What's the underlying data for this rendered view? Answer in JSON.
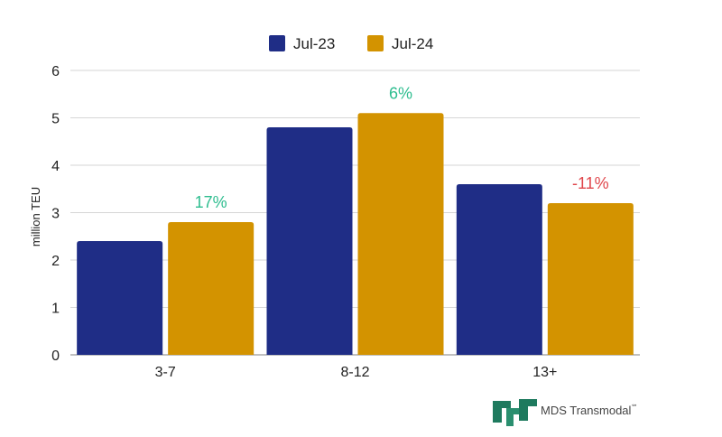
{
  "chart_data": {
    "type": "bar",
    "categories": [
      "3-7",
      "8-12",
      "13+"
    ],
    "series": [
      {
        "name": "Jul-23",
        "values": [
          2.4,
          4.8,
          3.6
        ],
        "color": "#1f2d86"
      },
      {
        "name": "Jul-24",
        "values": [
          2.8,
          5.1,
          3.2
        ],
        "color": "#d39300"
      }
    ],
    "annotations": [
      {
        "category": "3-7",
        "series": "Jul-24",
        "text": "17%",
        "color": "#2ebd8f"
      },
      {
        "category": "8-12",
        "series": "Jul-24",
        "text": "6%",
        "color": "#2ebd8f"
      },
      {
        "category": "13+",
        "series": "Jul-24",
        "text": "-11%",
        "color": "#e0474c"
      }
    ],
    "title": "",
    "xlabel": "",
    "ylabel": "million TEU",
    "ylim": [
      0,
      6
    ],
    "yticks": [
      "0",
      "1",
      "2",
      "3",
      "4",
      "5",
      "6"
    ],
    "grid": true,
    "legend_position": "top-center"
  },
  "logo": {
    "text": "MDS Transmodal",
    "mark": "℠",
    "color": "#1e7a5e"
  }
}
